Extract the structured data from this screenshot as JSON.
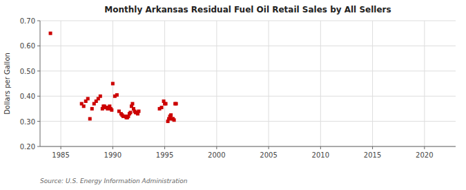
{
  "chart_data": {
    "type": "scatter",
    "title": "Monthly Arkansas Residual Fuel Oil Retail Sales by All Sellers",
    "ylabel": "Dollars per Gallon",
    "source": "Source: U.S. Energy Information Administration",
    "color": "#cc0000",
    "marker": "square",
    "grid": true,
    "xlim": [
      1983,
      2023
    ],
    "ylim": [
      0.2,
      0.7
    ],
    "xticks": [
      1985,
      1990,
      1995,
      2000,
      2005,
      2010,
      2015,
      2020
    ],
    "yticks": [
      {
        "value": 0.2,
        "label": "0.20"
      },
      {
        "value": 0.3,
        "label": "0.30"
      },
      {
        "value": 0.4,
        "label": "0.40"
      },
      {
        "value": 0.5,
        "label": "0.50"
      },
      {
        "value": 0.6,
        "label": "0.60"
      },
      {
        "value": 0.7,
        "label": "0.70"
      }
    ],
    "x": [
      1984.0,
      1987.0,
      1987.2,
      1987.4,
      1987.6,
      1987.8,
      1988.0,
      1988.2,
      1988.4,
      1988.6,
      1988.8,
      1989.0,
      1989.1,
      1989.2,
      1989.3,
      1989.4,
      1989.5,
      1989.6,
      1989.7,
      1989.8,
      1989.9,
      1990.0,
      1990.2,
      1990.4,
      1990.6,
      1990.8,
      1990.9,
      1991.0,
      1991.2,
      1991.3,
      1991.4,
      1991.5,
      1991.6,
      1991.7,
      1991.8,
      1991.9,
      1992.0,
      1992.1,
      1992.2,
      1992.3,
      1992.4,
      1992.5,
      1994.5,
      1994.7,
      1994.9,
      1995.0,
      1995.1,
      1995.3,
      1995.4,
      1995.5,
      1995.6,
      1995.7,
      1995.8,
      1995.9,
      1996.0,
      1996.1
    ],
    "values": [
      0.65,
      0.37,
      0.36,
      0.38,
      0.39,
      0.31,
      0.35,
      0.37,
      0.38,
      0.39,
      0.4,
      0.35,
      0.36,
      0.36,
      0.355,
      0.355,
      0.35,
      0.355,
      0.36,
      0.35,
      0.345,
      0.45,
      0.4,
      0.405,
      0.34,
      0.33,
      0.325,
      0.32,
      0.32,
      0.315,
      0.315,
      0.32,
      0.33,
      0.335,
      0.36,
      0.37,
      0.35,
      0.34,
      0.335,
      0.335,
      0.33,
      0.34,
      0.35,
      0.355,
      0.38,
      0.37,
      0.37,
      0.3,
      0.31,
      0.32,
      0.325,
      0.31,
      0.31,
      0.305,
      0.37,
      0.37
    ]
  }
}
